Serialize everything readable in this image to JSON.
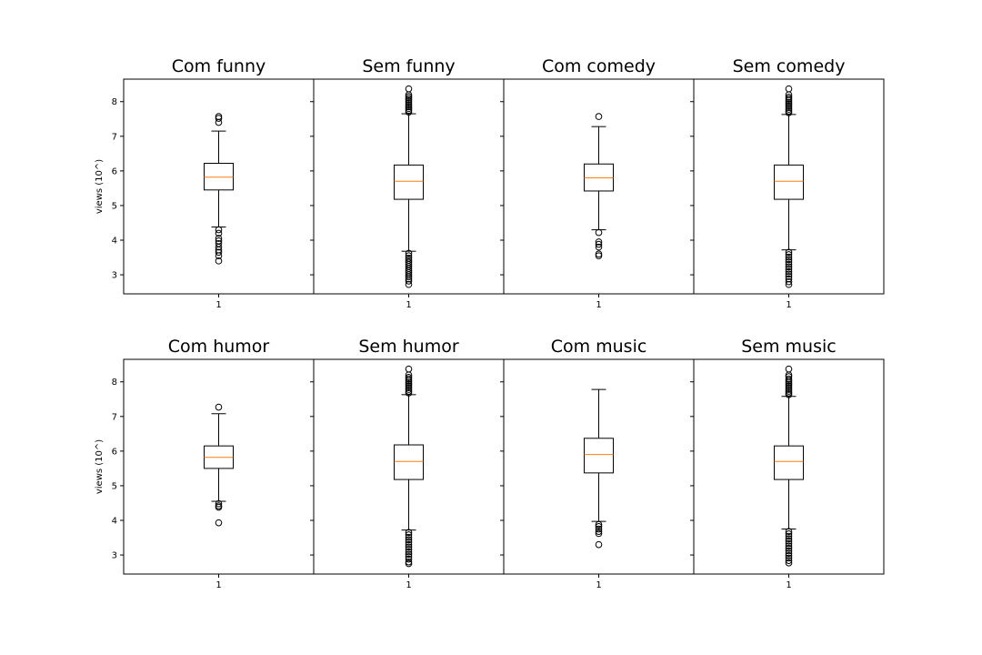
{
  "chart_data": {
    "type": "boxplot",
    "layout": {
      "rows": 2,
      "cols": 4,
      "sharey": true
    },
    "ylabel": "views (10^)",
    "ylim": [
      2.45,
      8.65
    ],
    "yticks": [
      3,
      4,
      5,
      6,
      7,
      8
    ],
    "xtick_label": "1",
    "panels": [
      {
        "title": "Com funny",
        "q1": 5.45,
        "median": 5.82,
        "q3": 6.22,
        "whisker_low": 4.38,
        "whisker_high": 7.15,
        "outliers_high": [
          7.4,
          7.52,
          7.57
        ],
        "outliers_low": [
          4.3,
          4.2,
          4.05,
          3.98,
          3.9,
          3.8,
          3.72,
          3.65,
          3.55,
          3.4
        ]
      },
      {
        "title": "Sem funny",
        "q1": 5.18,
        "median": 5.7,
        "q3": 6.17,
        "whisker_low": 3.68,
        "whisker_high": 7.65,
        "outliers_high": [
          7.7,
          7.75,
          7.8,
          7.85,
          7.9,
          7.95,
          8.0,
          8.05,
          8.1,
          8.15,
          8.2,
          8.37
        ],
        "outliers_low": [
          3.62,
          3.55,
          3.48,
          3.42,
          3.36,
          3.3,
          3.24,
          3.18,
          3.12,
          3.06,
          3.0,
          2.94,
          2.88,
          2.82,
          2.72
        ]
      },
      {
        "title": "Com comedy",
        "q1": 5.42,
        "median": 5.8,
        "q3": 6.2,
        "whisker_low": 4.3,
        "whisker_high": 7.28,
        "outliers_high": [
          7.57
        ],
        "outliers_low": [
          4.22,
          3.95,
          3.88,
          3.8,
          3.6,
          3.55
        ]
      },
      {
        "title": "Sem comedy",
        "q1": 5.18,
        "median": 5.7,
        "q3": 6.17,
        "whisker_low": 3.72,
        "whisker_high": 7.63,
        "outliers_high": [
          7.68,
          7.73,
          7.78,
          7.83,
          7.88,
          7.93,
          7.98,
          8.03,
          8.08,
          8.13,
          8.2,
          8.37
        ],
        "outliers_low": [
          3.65,
          3.58,
          3.51,
          3.44,
          3.37,
          3.3,
          3.23,
          3.16,
          3.09,
          3.02,
          2.95,
          2.88,
          2.8,
          2.72
        ]
      },
      {
        "title": "Com humor",
        "q1": 5.5,
        "median": 5.82,
        "q3": 6.15,
        "whisker_low": 4.55,
        "whisker_high": 7.08,
        "outliers_high": [
          7.27
        ],
        "outliers_low": [
          4.48,
          4.42,
          4.38,
          3.93
        ]
      },
      {
        "title": "Sem humor",
        "q1": 5.18,
        "median": 5.7,
        "q3": 6.18,
        "whisker_low": 3.72,
        "whisker_high": 7.63,
        "outliers_high": [
          7.68,
          7.73,
          7.78,
          7.83,
          7.88,
          7.93,
          7.98,
          8.03,
          8.08,
          8.13,
          8.2,
          8.37
        ],
        "outliers_low": [
          3.65,
          3.58,
          3.51,
          3.44,
          3.37,
          3.3,
          3.23,
          3.16,
          3.09,
          3.02,
          2.95,
          2.88,
          2.8,
          2.75
        ]
      },
      {
        "title": "Com music",
        "q1": 5.37,
        "median": 5.9,
        "q3": 6.37,
        "whisker_low": 3.97,
        "whisker_high": 7.78,
        "outliers_high": [],
        "outliers_low": [
          3.88,
          3.82,
          3.75,
          3.68,
          3.62,
          3.3
        ]
      },
      {
        "title": "Sem music",
        "q1": 5.18,
        "median": 5.7,
        "q3": 6.15,
        "whisker_low": 3.75,
        "whisker_high": 7.58,
        "outliers_high": [
          7.63,
          7.68,
          7.73,
          7.78,
          7.83,
          7.88,
          7.93,
          7.98,
          8.03,
          8.08,
          8.15,
          8.2,
          8.37
        ],
        "outliers_low": [
          3.68,
          3.61,
          3.54,
          3.47,
          3.4,
          3.33,
          3.26,
          3.19,
          3.12,
          3.05,
          2.98,
          2.91,
          2.84,
          2.77
        ]
      }
    ],
    "colors": {
      "box": "#000000",
      "median": "#ff7f0e",
      "background": "#ffffff"
    },
    "grid": false
  }
}
